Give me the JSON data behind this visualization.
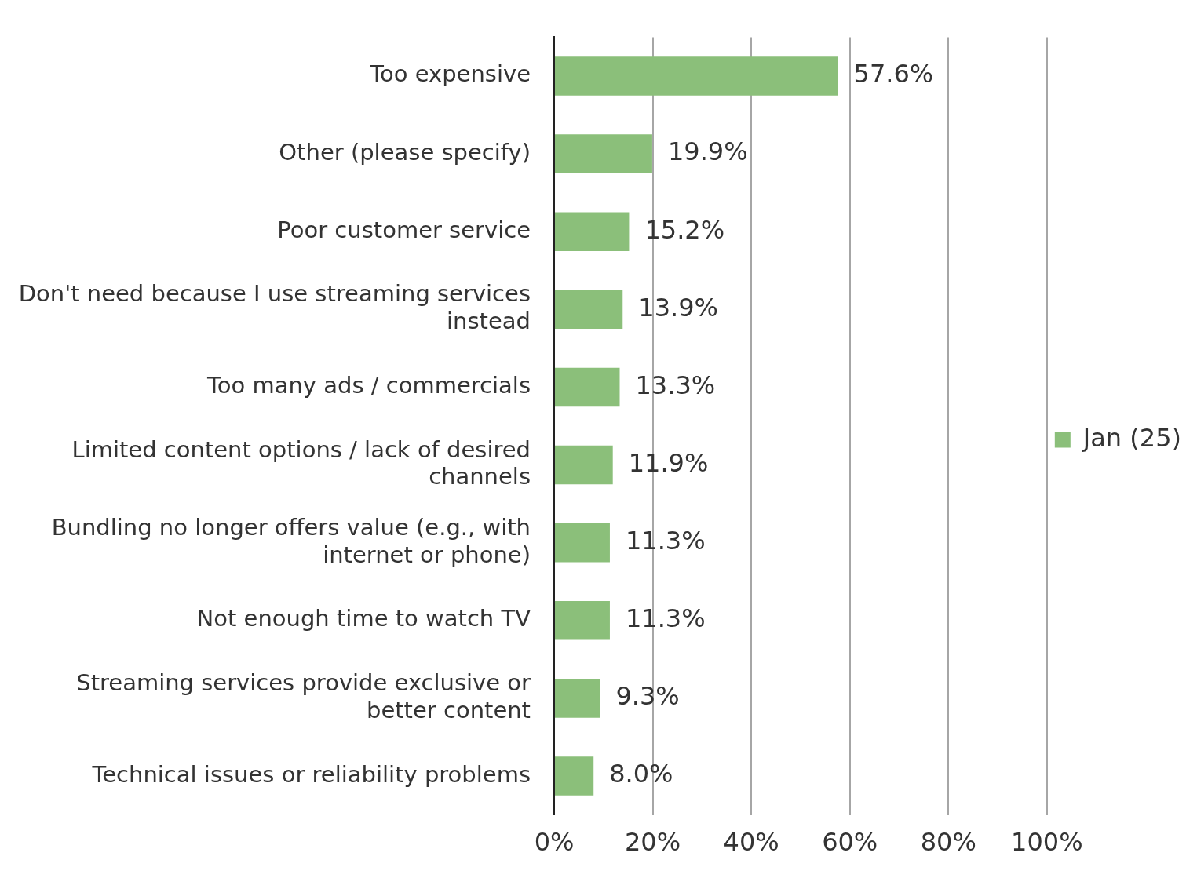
{
  "chart_data": {
    "type": "bar",
    "orientation": "horizontal",
    "categories": [
      "Too expensive",
      "Other (please specify)",
      "Poor customer service",
      "Don't need because I use streaming services instead",
      "Too many ads / commercials",
      "Limited content options / lack of desired channels",
      "Bundling no longer offers value (e.g., with internet or phone)",
      "Not enough time to watch TV",
      "Streaming services provide exclusive or better content",
      "Technical issues or reliability problems"
    ],
    "series": [
      {
        "name": "Jan (25)",
        "color": "#8bbf7a",
        "values": [
          57.6,
          19.9,
          15.2,
          13.9,
          13.3,
          11.9,
          11.3,
          11.3,
          9.3,
          8.0
        ],
        "value_labels": [
          "57.6%",
          "19.9%",
          "15.2%",
          "13.9%",
          "13.3%",
          "11.9%",
          "11.3%",
          "11.3%",
          "9.3%",
          "8.0%"
        ]
      }
    ],
    "xlim": [
      0,
      100
    ],
    "xticks": [
      {
        "value": 0,
        "label": "0%"
      },
      {
        "value": 20,
        "label": "20%"
      },
      {
        "value": 40,
        "label": "40%"
      },
      {
        "value": 60,
        "label": "60%"
      },
      {
        "value": 80,
        "label": "80%"
      },
      {
        "value": 100,
        "label": "100%"
      }
    ],
    "grid": "x",
    "legend": "right"
  }
}
